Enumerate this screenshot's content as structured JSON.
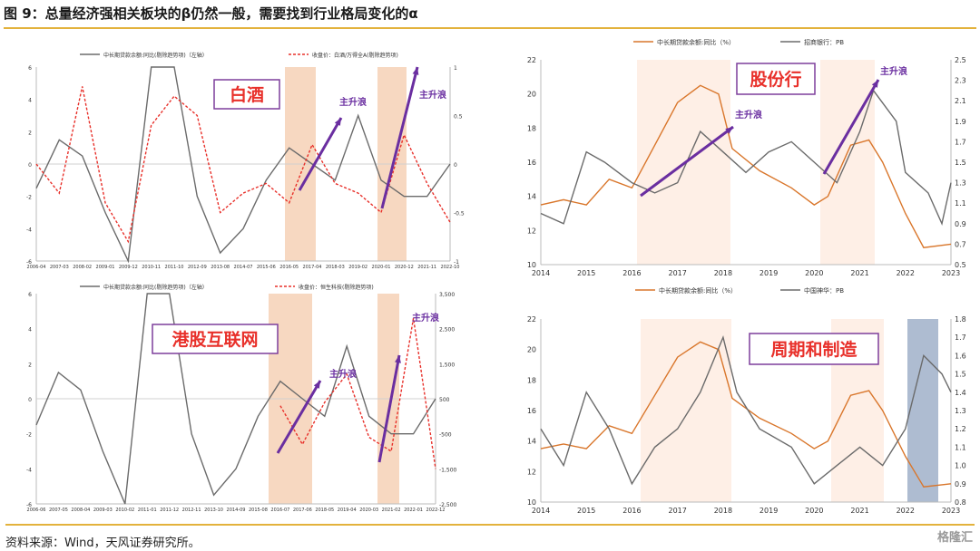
{
  "title": "图 9：总量经济强相关板块的β仍然一般，需要找到行业格局变化的α",
  "footer": "资料来源：Wind，天风证券研究所。",
  "watermark": "格隆汇",
  "colors": {
    "gray": "#6b6b6b",
    "red": "#e8302a",
    "orange": "#d9762b",
    "arrow": "#6a2ea0",
    "shade_orange": "#f3c7a6",
    "shade_light": "#fde8dc",
    "shade_blue": "#9aabc6",
    "label_border": "#7d3e9c",
    "label_text": "#e8302a"
  },
  "chart_data": [
    {
      "id": "baijiu",
      "type": "line",
      "label": "白酒",
      "legend": [
        "中长期贷款余额:同比(剔除趋势项)（左轴）",
        "收盘价：白酒/万得全A(剔除趋势项)"
      ],
      "y_left": {
        "ticks": [
          "6",
          "4",
          "2",
          "0",
          "-2",
          "-4",
          "-6"
        ],
        "range": [
          -6,
          6
        ]
      },
      "y_right": {
        "ticks": [
          "1",
          "0.5",
          "0",
          "-0.5",
          "-1"
        ],
        "range": [
          -1,
          1
        ]
      },
      "x_ticks": [
        "2006-04",
        "2007-03",
        "2008-02",
        "2009-01",
        "2009-12",
        "2010-11",
        "2011-10",
        "2012-09",
        "2013-08",
        "2014-07",
        "2015-06",
        "2016-05",
        "2017-04",
        "2018-03",
        "2019-02",
        "2020-01",
        "2020-12",
        "2021-11",
        "2022-10"
      ],
      "series": [
        {
          "name": "中长期贷款余额:同比(剔除趋势项)（左轴）",
          "style": "solid",
          "points": [
            [
              0,
              -1.5
            ],
            [
              1,
              1.5
            ],
            [
              2,
              0.5
            ],
            [
              3,
              -3
            ],
            [
              4,
              -6
            ],
            [
              5,
              6
            ],
            [
              6,
              6
            ],
            [
              7,
              -2
            ],
            [
              8,
              -5.5
            ],
            [
              9,
              -4
            ],
            [
              10,
              -1
            ],
            [
              11,
              1
            ],
            [
              12,
              0
            ],
            [
              13,
              -1
            ],
            [
              14,
              3
            ],
            [
              15,
              -1
            ],
            [
              16,
              -2
            ],
            [
              17,
              -2
            ],
            [
              18,
              0
            ]
          ]
        },
        {
          "name": "收盘价：白酒/万得全A(剔除趋势项)",
          "style": "dashed",
          "points": [
            [
              0,
              0
            ],
            [
              1,
              -0.3
            ],
            [
              2,
              0.8
            ],
            [
              3,
              -0.4
            ],
            [
              4,
              -0.8
            ],
            [
              5,
              0.4
            ],
            [
              6,
              0.7
            ],
            [
              7,
              0.5
            ],
            [
              8,
              -0.5
            ],
            [
              9,
              -0.3
            ],
            [
              10,
              -0.2
            ],
            [
              11,
              -0.4
            ],
            [
              12,
              0.2
            ],
            [
              13,
              -0.2
            ],
            [
              14,
              -0.3
            ],
            [
              15,
              -0.5
            ],
            [
              16,
              0.3
            ],
            [
              17,
              -0.2
            ],
            [
              18,
              -0.6
            ]
          ]
        }
      ],
      "annotations": [
        "主升浪",
        "主升浪"
      ]
    },
    {
      "id": "hk_internet",
      "type": "line",
      "label": "港股互联网",
      "legend": [
        "中长期贷款余额:同比(剔除趋势项)（左轴）",
        "收盘价：恒生科技(剔除趋势项)"
      ],
      "y_left": {
        "ticks": [
          "6",
          "4",
          "2",
          "0",
          "-2",
          "-4",
          "-6"
        ],
        "range": [
          -6,
          6
        ]
      },
      "y_right": {
        "ticks": [
          "3,500",
          "2,500",
          "1,500",
          "500",
          "-500",
          "-1,500",
          "-2,500"
        ],
        "range": [
          -2500,
          3500
        ]
      },
      "x_ticks": [
        "2006-06",
        "2007-05",
        "2008-04",
        "2009-03",
        "2010-02",
        "2011-01",
        "2011-12",
        "2012-11",
        "2013-10",
        "2014-09",
        "2015-08",
        "2016-07",
        "2017-06",
        "2018-05",
        "2019-04",
        "2020-03",
        "2021-02",
        "2022-01",
        "2022-12"
      ],
      "series": [
        {
          "name": "中长期贷款余额:同比(剔除趋势项)（左轴）",
          "style": "solid",
          "points": [
            [
              0,
              -1.5
            ],
            [
              1,
              1.5
            ],
            [
              2,
              0.5
            ],
            [
              3,
              -3
            ],
            [
              4,
              -6
            ],
            [
              5,
              6
            ],
            [
              6,
              6
            ],
            [
              7,
              -2
            ],
            [
              8,
              -5.5
            ],
            [
              9,
              -4
            ],
            [
              10,
              -1
            ],
            [
              11,
              1
            ],
            [
              12,
              0
            ],
            [
              13,
              -1
            ],
            [
              14,
              3
            ],
            [
              15,
              -1
            ],
            [
              16,
              -2
            ],
            [
              17,
              -2
            ],
            [
              18,
              0
            ]
          ]
        },
        {
          "name": "收盘价：恒生科技(剔除趋势项)",
          "style": "dashed",
          "points": [
            [
              11,
              300
            ],
            [
              12,
              -800
            ],
            [
              13,
              400
            ],
            [
              14,
              1200
            ],
            [
              15,
              -600
            ],
            [
              16,
              -1000
            ],
            [
              17,
              2800
            ],
            [
              18,
              -1500
            ]
          ]
        }
      ],
      "annotations": [
        "主升浪",
        "主升浪"
      ]
    },
    {
      "id": "joint_stock_banks",
      "type": "line",
      "label": "股份行",
      "legend": [
        "中长期贷款余额:同比（%）",
        "招商银行：PB"
      ],
      "y_left": {
        "ticks": [
          "22",
          "20",
          "18",
          "16",
          "14",
          "12",
          "10"
        ],
        "range": [
          10,
          22
        ]
      },
      "y_right": {
        "ticks": [
          "2.5",
          "2.3",
          "2.1",
          "1.9",
          "1.7",
          "1.5",
          "1.3",
          "1.1",
          "0.9",
          "0.7",
          "0.5"
        ],
        "range": [
          0.5,
          2.5
        ]
      },
      "x_ticks": [
        "2014",
        "2015",
        "2016",
        "2017",
        "2018",
        "2019",
        "2020",
        "2021",
        "2022",
        "2023"
      ],
      "series": [
        {
          "name": "中长期贷款余额:同比（%）",
          "style": "solid",
          "points": [
            [
              2014,
              13.5
            ],
            [
              2014.5,
              13.8
            ],
            [
              2015,
              13.5
            ],
            [
              2015.5,
              15
            ],
            [
              2016,
              14.5
            ],
            [
              2016.5,
              17
            ],
            [
              2017,
              19.5
            ],
            [
              2017.5,
              20.5
            ],
            [
              2017.9,
              20
            ],
            [
              2018.2,
              16.8
            ],
            [
              2018.8,
              15.5
            ],
            [
              2019.5,
              14.5
            ],
            [
              2020,
              13.5
            ],
            [
              2020.3,
              14
            ],
            [
              2020.8,
              17
            ],
            [
              2021.2,
              17.3
            ],
            [
              2021.5,
              16
            ],
            [
              2022,
              13
            ],
            [
              2022.4,
              11
            ],
            [
              2023,
              11.2
            ]
          ]
        },
        {
          "name": "招商银行：PB",
          "style": "solid",
          "points": [
            [
              2014,
              1.0
            ],
            [
              2014.5,
              0.9
            ],
            [
              2015,
              1.6
            ],
            [
              2015.4,
              1.5
            ],
            [
              2016,
              1.3
            ],
            [
              2016.5,
              1.2
            ],
            [
              2017,
              1.3
            ],
            [
              2017.5,
              1.8
            ],
            [
              2018,
              1.6
            ],
            [
              2018.5,
              1.4
            ],
            [
              2019,
              1.6
            ],
            [
              2019.5,
              1.7
            ],
            [
              2020,
              1.5
            ],
            [
              2020.5,
              1.3
            ],
            [
              2021,
              1.8
            ],
            [
              2021.3,
              2.2
            ],
            [
              2021.8,
              1.9
            ],
            [
              2022,
              1.4
            ],
            [
              2022.5,
              1.2
            ],
            [
              2022.8,
              0.9
            ],
            [
              2023,
              1.3
            ]
          ]
        }
      ],
      "annotations": [
        "主升浪",
        "主升浪"
      ]
    },
    {
      "id": "cyclical_mfg",
      "type": "line",
      "label": "周期和制造",
      "legend": [
        "中长期贷款余额:同比（%）",
        "中国神华：PB"
      ],
      "y_left": {
        "ticks": [
          "22",
          "20",
          "18",
          "16",
          "14",
          "12",
          "10"
        ],
        "range": [
          10,
          22
        ]
      },
      "y_right": {
        "ticks": [
          "1.8",
          "1.7",
          "1.6",
          "1.5",
          "1.4",
          "1.3",
          "1.2",
          "1.1",
          "1.0",
          "0.9",
          "0.8"
        ],
        "range": [
          0.8,
          1.8
        ]
      },
      "x_ticks": [
        "2014",
        "2015",
        "2016",
        "2017",
        "2018",
        "2019",
        "2020",
        "2021",
        "2022",
        "2023"
      ],
      "series": [
        {
          "name": "中长期贷款余额:同比（%）",
          "style": "solid",
          "points": [
            [
              2014,
              13.5
            ],
            [
              2014.5,
              13.8
            ],
            [
              2015,
              13.5
            ],
            [
              2015.5,
              15
            ],
            [
              2016,
              14.5
            ],
            [
              2016.5,
              17
            ],
            [
              2017,
              19.5
            ],
            [
              2017.5,
              20.5
            ],
            [
              2017.9,
              20
            ],
            [
              2018.2,
              16.8
            ],
            [
              2018.8,
              15.5
            ],
            [
              2019.5,
              14.5
            ],
            [
              2020,
              13.5
            ],
            [
              2020.3,
              14
            ],
            [
              2020.8,
              17
            ],
            [
              2021.2,
              17.3
            ],
            [
              2021.5,
              16
            ],
            [
              2022,
              13
            ],
            [
              2022.4,
              11
            ],
            [
              2023,
              11.2
            ]
          ]
        },
        {
          "name": "中国神华：PB",
          "style": "solid",
          "points": [
            [
              2014,
              1.2
            ],
            [
              2014.5,
              1.0
            ],
            [
              2015,
              1.4
            ],
            [
              2015.5,
              1.2
            ],
            [
              2016,
              0.9
            ],
            [
              2016.5,
              1.1
            ],
            [
              2017,
              1.2
            ],
            [
              2017.5,
              1.4
            ],
            [
              2018,
              1.7
            ],
            [
              2018.3,
              1.4
            ],
            [
              2018.8,
              1.2
            ],
            [
              2019.5,
              1.1
            ],
            [
              2020,
              0.9
            ],
            [
              2020.5,
              1.0
            ],
            [
              2021,
              1.1
            ],
            [
              2021.5,
              1.0
            ],
            [
              2022,
              1.2
            ],
            [
              2022.4,
              1.6
            ],
            [
              2022.8,
              1.5
            ],
            [
              2023,
              1.4
            ]
          ]
        }
      ]
    }
  ]
}
